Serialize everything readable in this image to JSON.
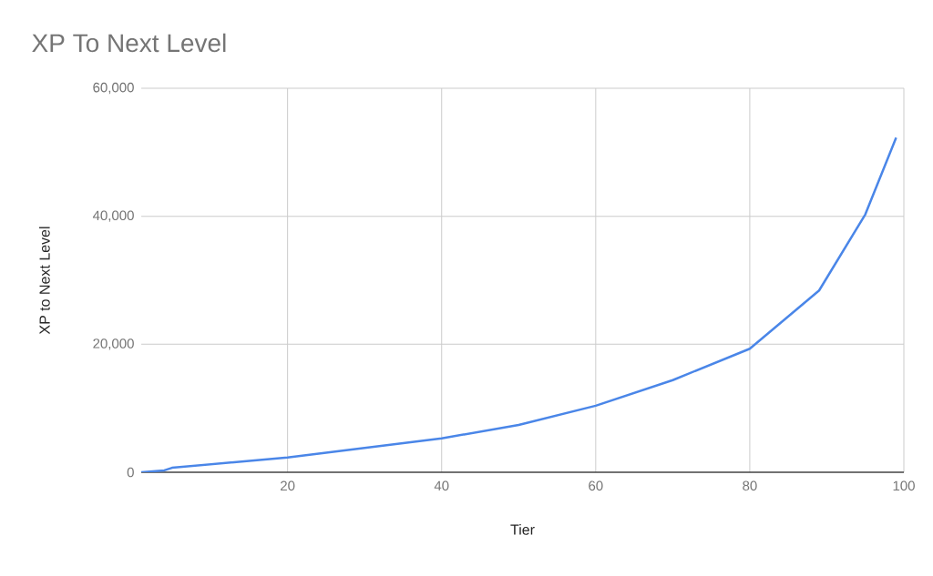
{
  "chart_data": {
    "type": "line",
    "title": "XP To Next Level",
    "xlabel": "Tier",
    "ylabel": "XP to Next Level",
    "x": [
      1,
      4,
      5,
      20,
      40,
      50,
      60,
      70,
      80,
      89,
      95,
      99
    ],
    "series": [
      {
        "color": "#4a86e8",
        "values": [
          0,
          300,
          700,
          2300,
          5300,
          7400,
          10400,
          14400,
          19300,
          28400,
          40300,
          52300
        ]
      }
    ],
    "xlim": [
      1,
      100
    ],
    "xticks": [
      20,
      40,
      60,
      80,
      100
    ],
    "ylim": [
      0,
      60000
    ],
    "yticks": [
      {
        "value": 0,
        "label": "0"
      },
      {
        "value": 20000,
        "label": "20,000"
      },
      {
        "value": 40000,
        "label": "40,000"
      },
      {
        "value": 60000,
        "label": "60,000"
      }
    ],
    "grid": true,
    "marker": "none",
    "line_style": "solid"
  }
}
